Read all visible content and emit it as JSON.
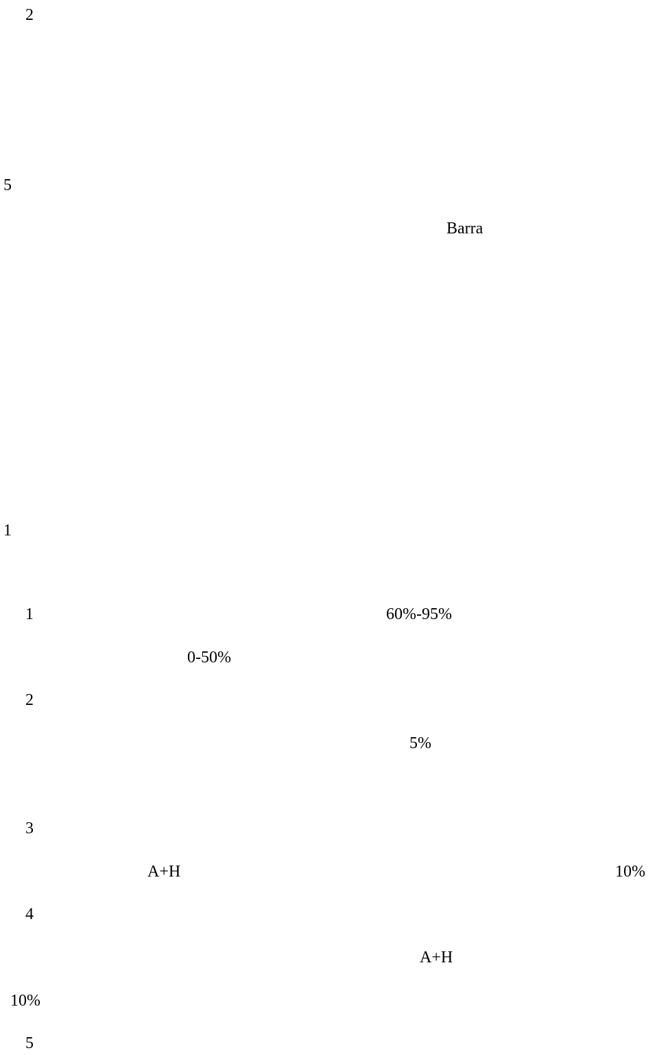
{
  "fragments": [
    "2",
    "5",
    "Barra",
    "1",
    "1",
    "60%-95%",
    "0-50%",
    "2",
    "5%",
    "3",
    "A+H",
    "10%",
    "4",
    "A+H",
    "10%",
    "5"
  ]
}
